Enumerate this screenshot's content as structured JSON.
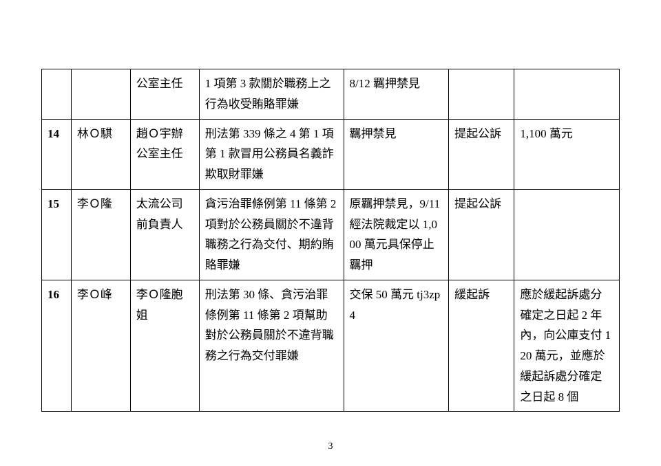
{
  "page_number": "3",
  "table": {
    "columns": [
      "idx",
      "name",
      "role",
      "law",
      "status",
      "disposition",
      "note"
    ],
    "col_widths_pct": [
      4.5,
      9,
      10.5,
      22,
      16,
      10,
      16
    ],
    "border_color": "#000000",
    "font_family": "KaiTi/DFKai-SB",
    "font_size_pt": 13,
    "line_height": 1.75,
    "background_color": "#ffffff",
    "rows": [
      {
        "idx": "",
        "name": "",
        "role": "公室主任",
        "law": "1 項第 3 款關於職務上之行為收受賄賂罪嫌",
        "status": "8/12 羈押禁見",
        "disposition": "",
        "note": ""
      },
      {
        "idx": "14",
        "name": "林Ｏ騏",
        "role": "趙Ｏ宇辦公室主任",
        "law": "刑法第 339 條之 4 第 1 項第 1 款冒用公務員名義詐欺取財罪嫌",
        "status": "羈押禁見",
        "disposition": "提起公訴",
        "note": "1,100 萬元"
      },
      {
        "idx": "15",
        "name": "李Ｏ隆",
        "role": "太流公司前負責人",
        "law": "貪污治罪條例第 11 條第 2 項對於公務員關於不違背職務之行為交付、期約賄賂罪嫌",
        "status": "原羈押禁見，9/11 經法院裁定以 1,000 萬元具保停止羈押",
        "disposition": "提起公訴",
        "note": ""
      },
      {
        "idx": "16",
        "name": "李Ｏ峰",
        "role": "李Ｏ隆胞姐",
        "law": "刑法第 30 條、貪污治罪條例第 11 條第 2 項幫助對於公務員關於不違背職務之行為交付罪嫌",
        "status": "交保 50 萬元 tj3zp4",
        "disposition": "緩起訴",
        "note": "應於緩起訴處分確定之日起 2 年內，向公庫支付 120 萬元，並應於緩起訴處分確定之日起 8 個"
      }
    ]
  }
}
